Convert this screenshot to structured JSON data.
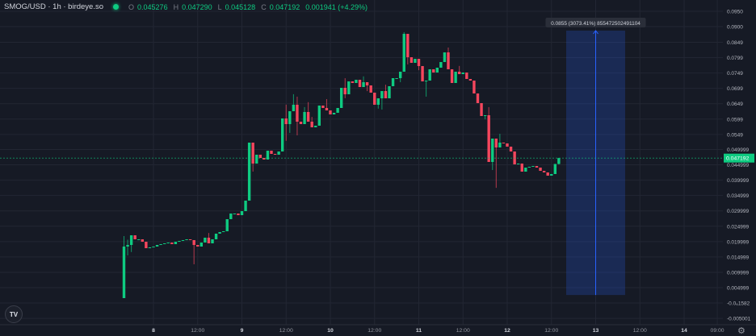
{
  "header": {
    "symbol": "SMOG/USD · 1h · birdeye.so",
    "o_label": "O",
    "o_value": "0.045276",
    "h_label": "H",
    "h_value": "0.047290",
    "l_label": "L",
    "l_value": "0.045128",
    "c_label": "C",
    "c_value": "0.047192",
    "change": "0.001941 (+4.29%)"
  },
  "logo_text": "TV",
  "settings_icon": "gear-icon",
  "colors": {
    "background": "#161a25",
    "up": "#0ecb81",
    "down": "#f6465d",
    "grid": "#222633",
    "measure": "#2962ff"
  },
  "chart_data": {
    "type": "candlestick",
    "interval": "1h",
    "start": {
      "day": 7,
      "hour": 16
    },
    "first_open": 0.00159,
    "closes": [
      0.01838,
      0.0189,
      0.02205,
      0.02074,
      0.02074,
      0.01995,
      0.01785,
      0.01812,
      0.01838,
      0.0189,
      0.01917,
      0.01943,
      0.01969,
      0.01917,
      0.01995,
      0.02022,
      0.02048,
      0.02074,
      0.02048,
      0.0189,
      0.01838,
      0.01969,
      0.02127,
      0.01943,
      0.02074,
      0.02258,
      0.0231,
      0.02336,
      0.0273,
      0.02914,
      0.02914,
      0.02861,
      0.02992,
      0.03334,
      0.05223,
      0.04541,
      0.04829,
      0.04724,
      0.04672,
      0.0496,
      0.04856,
      0.04829,
      0.04934,
      0.0601,
      0.05826,
      0.06246,
      0.06456,
      0.05905,
      0.05826,
      0.0622,
      0.05905,
      0.05721,
      0.05774,
      0.0643,
      0.06351,
      0.06272,
      0.06141,
      0.06194,
      0.06351,
      0.07007,
      0.06797,
      0.07217,
      0.07165,
      0.0727,
      0.07033,
      0.07191,
      0.07086,
      0.0685,
      0.06456,
      0.06666,
      0.06902,
      0.06666,
      0.0706,
      0.07322,
      0.07322,
      0.07532,
      0.08765,
      0.08004,
      0.07821,
      0.07952,
      0.07716,
      0.07217,
      0.07243,
      0.07611,
      0.07506,
      0.07663,
      0.07847,
      0.08162,
      0.07611,
      0.07165,
      0.07532,
      0.07454,
      0.07506,
      0.07296,
      0.07243,
      0.06824,
      0.06509,
      0.06089,
      0.06115,
      0.04593,
      0.05354,
      0.05065,
      0.05223,
      0.05197,
      0.05092,
      0.04934,
      0.04514,
      0.04541,
      0.04278,
      0.04409,
      0.04436,
      0.04462,
      0.04409,
      0.04304,
      0.04252,
      0.04147,
      0.042,
      0.045276,
      0.047192
    ],
    "wick_extremes": [
      {
        "i": 0,
        "h": 0.0218
      },
      {
        "i": 1,
        "h": 0.0206,
        "l": 0.0155
      },
      {
        "i": 2,
        "l": 0.0166
      },
      {
        "i": 19,
        "l": 0.0126
      },
      {
        "i": 23,
        "h": 0.0228
      },
      {
        "i": 35,
        "l": 0.0428
      },
      {
        "i": 44,
        "h": 0.0646,
        "l": 0.0528
      },
      {
        "i": 45,
        "l": 0.0554
      },
      {
        "i": 46,
        "h": 0.068
      },
      {
        "i": 47,
        "h": 0.0672,
        "l": 0.0546
      },
      {
        "i": 49,
        "h": 0.0638
      },
      {
        "i": 50,
        "h": 0.0654
      },
      {
        "i": 51,
        "h": 0.0606
      },
      {
        "i": 55,
        "h": 0.0664
      },
      {
        "i": 60,
        "h": 0.0732,
        "l": 0.0667
      },
      {
        "i": 65,
        "h": 0.0738
      },
      {
        "i": 66,
        "l": 0.069
      },
      {
        "i": 68,
        "l": 0.068
      },
      {
        "i": 69,
        "l": 0.0633
      },
      {
        "i": 70,
        "l": 0.063
      },
      {
        "i": 71,
        "h": 0.0711
      },
      {
        "i": 75,
        "l": 0.0719
      },
      {
        "i": 76,
        "h": 0.0882
      },
      {
        "i": 77,
        "l": 0.0777
      },
      {
        "i": 80,
        "l": 0.0758
      },
      {
        "i": 82,
        "l": 0.0672
      },
      {
        "i": 88,
        "h": 0.0832
      },
      {
        "i": 91,
        "h": 0.0772
      },
      {
        "i": 97,
        "l": 0.0638
      },
      {
        "i": 98,
        "l": 0.0598
      },
      {
        "i": 99,
        "h": 0.0638
      },
      {
        "i": 100,
        "l": 0.0433
      },
      {
        "i": 101,
        "l": 0.0375
      },
      {
        "i": 102,
        "h": 0.0551
      },
      {
        "i": 118,
        "h": 0.04729,
        "l": 0.045128
      }
    ],
    "last_price": 0.047192,
    "last_price_label": "0.047192",
    "y_ticks": [
      {
        "v": 0.095,
        "label": "0.0950"
      },
      {
        "v": 0.09,
        "label": "0.0900"
      },
      {
        "v": 0.0849,
        "label": "0.0849"
      },
      {
        "v": 0.0799,
        "label": "0.0799"
      },
      {
        "v": 0.0749,
        "label": "0.0749"
      },
      {
        "v": 0.0699,
        "label": "0.0699"
      },
      {
        "v": 0.0649,
        "label": "0.0649"
      },
      {
        "v": 0.0599,
        "label": "0.0599"
      },
      {
        "v": 0.0549,
        "label": "0.0549"
      },
      {
        "v": 0.049999,
        "label": "0.049999"
      },
      {
        "v": 0.044999,
        "label": "0.044999"
      },
      {
        "v": 0.039999,
        "label": "0.039999"
      },
      {
        "v": 0.034999,
        "label": "0.034999"
      },
      {
        "v": 0.029999,
        "label": "0.029999"
      },
      {
        "v": 0.024999,
        "label": "0.024999"
      },
      {
        "v": 0.019999,
        "label": "0.019999"
      },
      {
        "v": 0.014999,
        "label": "0.014999"
      },
      {
        "v": 0.009999,
        "label": "0.009999"
      },
      {
        "v": 0.004999,
        "label": "0.004999"
      },
      {
        "v": -1.582e-07,
        "label": "-0.0₆1582"
      },
      {
        "v": -0.005001,
        "label": "-0.005001"
      }
    ],
    "x_ticks": [
      {
        "label": "8",
        "day": 8,
        "hour": 0,
        "bold": true
      },
      {
        "label": "12:00",
        "day": 8,
        "hour": 12
      },
      {
        "label": "9",
        "day": 9,
        "hour": 0,
        "bold": true
      },
      {
        "label": "12:00",
        "day": 9,
        "hour": 12
      },
      {
        "label": "10",
        "day": 10,
        "hour": 0,
        "bold": true
      },
      {
        "label": "12:00",
        "day": 10,
        "hour": 12
      },
      {
        "label": "11",
        "day": 11,
        "hour": 0,
        "bold": true
      },
      {
        "label": "12:00",
        "day": 11,
        "hour": 12
      },
      {
        "label": "12",
        "day": 12,
        "hour": 0,
        "bold": true
      },
      {
        "label": "12:00",
        "day": 12,
        "hour": 12
      },
      {
        "label": "13",
        "day": 13,
        "hour": 0,
        "bold": true
      },
      {
        "label": "12:00",
        "day": 13,
        "hour": 12
      },
      {
        "label": "14",
        "day": 14,
        "hour": 0,
        "bold": true
      },
      {
        "label": "09:00",
        "day": 14,
        "hour": 9
      }
    ],
    "measure": {
      "from": {
        "day": 12,
        "hour": 16
      },
      "to": {
        "day": 13,
        "hour": 8
      },
      "price_low": 0.0026,
      "price_high": 0.0887,
      "label": "0.0855 (3073.41%) 855472502491104"
    }
  }
}
